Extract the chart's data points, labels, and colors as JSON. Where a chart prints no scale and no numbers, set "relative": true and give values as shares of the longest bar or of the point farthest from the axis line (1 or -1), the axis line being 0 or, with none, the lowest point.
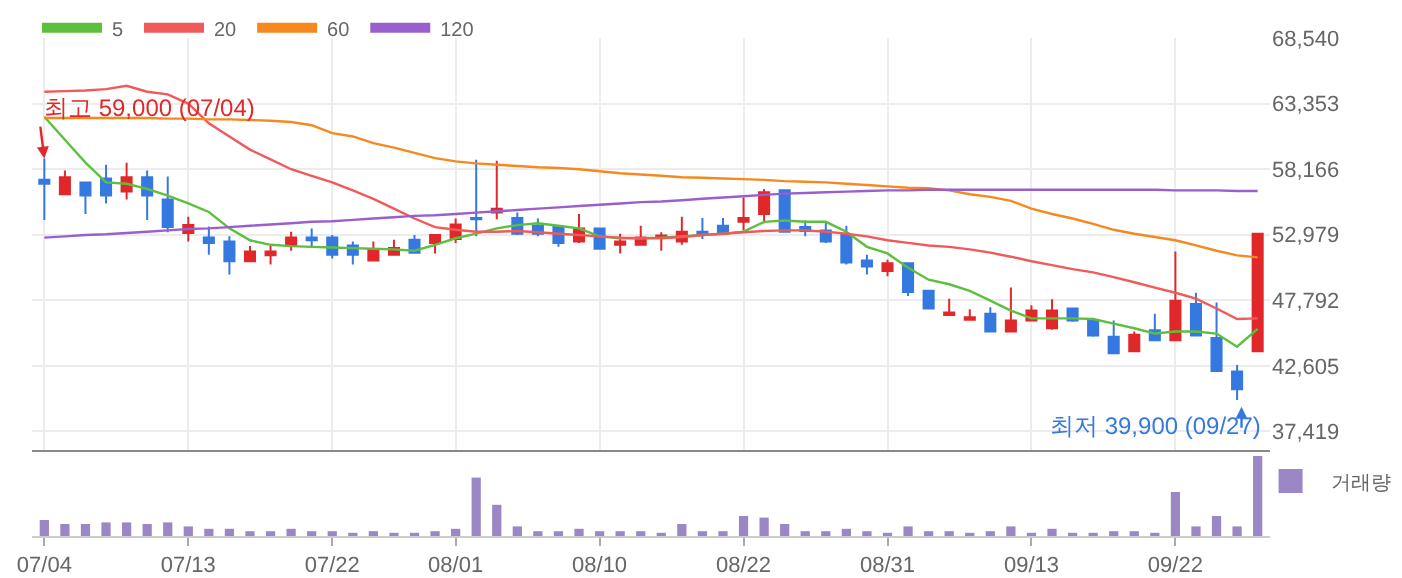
{
  "chart_data": [
    {
      "type": "candlestick",
      "categories": [
        "07/04",
        null,
        null,
        null,
        null,
        null,
        null,
        "07/13",
        null,
        null,
        null,
        null,
        null,
        null,
        "07/22",
        null,
        null,
        null,
        null,
        null,
        "08/01",
        null,
        null,
        null,
        null,
        null,
        null,
        "08/10",
        null,
        null,
        null,
        null,
        null,
        null,
        "08/22",
        null,
        null,
        null,
        null,
        null,
        null,
        "08/31",
        null,
        null,
        null,
        null,
        null,
        null,
        "09/13",
        null,
        null,
        null,
        null,
        null,
        null,
        "09/22",
        null,
        null,
        null,
        null
      ],
      "ohlc": [
        [
          57320,
          59000,
          54150,
          57010
        ],
        [
          56180,
          58050,
          56180,
          57530
        ],
        [
          57120,
          57120,
          54620,
          56080
        ],
        [
          57430,
          58520,
          55450,
          56080
        ],
        [
          56390,
          58680,
          55760,
          57530
        ],
        [
          57530,
          58050,
          54150,
          56080
        ],
        [
          55760,
          57580,
          53170,
          53580
        ],
        [
          53110,
          54410,
          52440,
          53740
        ],
        [
          52750,
          53630,
          51400,
          52330
        ],
        [
          52440,
          52850,
          49840,
          50880
        ],
        [
          50880,
          52080,
          50880,
          51660
        ],
        [
          51350,
          52080,
          50620,
          51660
        ],
        [
          52130,
          53220,
          51710,
          52750
        ],
        [
          52750,
          53480,
          51920,
          52540
        ],
        [
          52750,
          52960,
          51090,
          51400
        ],
        [
          52130,
          52440,
          50620,
          51400
        ],
        [
          50930,
          52440,
          50930,
          51820
        ],
        [
          51400,
          52590,
          51400,
          51920
        ],
        [
          52590,
          52960,
          51500,
          51560
        ],
        [
          52330,
          52960,
          51500,
          52960
        ],
        [
          52650,
          54260,
          52330,
          53790
        ],
        [
          54310,
          58900,
          52850,
          54210
        ],
        [
          54730,
          58830,
          54210,
          55040
        ],
        [
          54310,
          54730,
          52960,
          53060
        ],
        [
          53690,
          54260,
          52850,
          53060
        ],
        [
          53580,
          53630,
          52020,
          52330
        ],
        [
          52440,
          54620,
          52330,
          53480
        ],
        [
          53480,
          53480,
          51870,
          51870
        ],
        [
          52180,
          53060,
          51500,
          52440
        ],
        [
          52180,
          53690,
          52180,
          52750
        ],
        [
          52750,
          53170,
          51710,
          52910
        ],
        [
          52440,
          54410,
          52180,
          53220
        ],
        [
          53220,
          54310,
          52650,
          53060
        ],
        [
          53690,
          54310,
          52960,
          53060
        ],
        [
          54000,
          55920,
          53320,
          54310
        ],
        [
          54620,
          56600,
          53890,
          56340
        ],
        [
          56490,
          56490,
          53220,
          53220
        ],
        [
          53580,
          54100,
          52850,
          53270
        ],
        [
          53320,
          54050,
          52330,
          52440
        ],
        [
          52960,
          53690,
          50620,
          50780
        ],
        [
          50930,
          51400,
          49840,
          50460
        ],
        [
          50100,
          51000,
          49700,
          50720
        ],
        [
          50720,
          50780,
          48130,
          48440
        ],
        [
          48540,
          48540,
          47140,
          47140
        ],
        [
          46620,
          47920,
          46620,
          46830
        ],
        [
          46250,
          47090,
          46250,
          46460
        ],
        [
          46720,
          47240,
          45320,
          45320
        ],
        [
          45320,
          48800,
          45320,
          46200
        ],
        [
          46200,
          47400,
          46200,
          46980
        ],
        [
          45580,
          47870,
          45470,
          46980
        ],
        [
          47140,
          47140,
          46100,
          46200
        ],
        [
          46200,
          46310,
          44900,
          45010
        ],
        [
          44900,
          46200,
          43600,
          43600
        ],
        [
          43760,
          45320,
          43760,
          45060
        ],
        [
          45420,
          46720,
          44640,
          44640
        ],
        [
          44640,
          51660,
          44640,
          47760
        ],
        [
          47500,
          48390,
          45010,
          45010
        ],
        [
          44800,
          47610,
          42200,
          42200
        ],
        [
          42150,
          42670,
          39900,
          40750
        ],
        [
          43760,
          53060,
          43760,
          53060
        ]
      ],
      "series": [
        {
          "name": "5",
          "type": "line",
          "color": "#5cc03e",
          "values": [
            62310,
            60490,
            58680,
            57120,
            57010,
            56600,
            56080,
            55450,
            54780,
            53480,
            52540,
            52180,
            52080,
            52020,
            51970,
            51920,
            51870,
            51820,
            51710,
            52180,
            52700,
            53060,
            53480,
            53740,
            53890,
            53690,
            53480,
            52850,
            52700,
            52700,
            52750,
            52850,
            52960,
            53060,
            53220,
            54000,
            54100,
            54000,
            54000,
            53220,
            52020,
            51500,
            50360,
            49420,
            49060,
            48540,
            47760,
            46980,
            46360,
            46360,
            46360,
            46310,
            45940,
            45580,
            45160,
            45320,
            45320,
            45160,
            44120,
            45530
          ]
        },
        {
          "name": "20",
          "type": "line",
          "color": "#f05a5a",
          "values": [
            64290,
            64340,
            64390,
            64500,
            64760,
            64290,
            64080,
            63350,
            61790,
            60750,
            59710,
            58940,
            58160,
            57640,
            57120,
            56490,
            55820,
            55040,
            54260,
            53580,
            53370,
            53220,
            53220,
            53270,
            53170,
            53060,
            52960,
            52850,
            52750,
            52700,
            52700,
            52800,
            52960,
            53060,
            53170,
            53270,
            53320,
            53320,
            53220,
            53060,
            52850,
            52540,
            52330,
            52130,
            52020,
            51820,
            51560,
            51240,
            50880,
            50570,
            50260,
            50000,
            49630,
            49220,
            48800,
            48390,
            47920,
            47140,
            46310,
            46360
          ]
        },
        {
          "name": "60",
          "type": "line",
          "color": "#f5891f",
          "values": [
            62210,
            62210,
            62210,
            62210,
            62210,
            62210,
            62160,
            62160,
            62100,
            62100,
            62050,
            62000,
            61900,
            61640,
            61010,
            60750,
            60230,
            59870,
            59450,
            59040,
            58780,
            58620,
            58520,
            58410,
            58310,
            58260,
            58160,
            58000,
            57840,
            57740,
            57640,
            57530,
            57480,
            57430,
            57380,
            57320,
            57220,
            57170,
            57120,
            57010,
            56910,
            56800,
            56700,
            56650,
            56490,
            56180,
            55970,
            55660,
            55040,
            54620,
            54260,
            53840,
            53370,
            53060,
            52800,
            52540,
            52130,
            51710,
            51350,
            51190
          ]
        },
        {
          "name": "120",
          "type": "line",
          "color": "#9a5fce",
          "values": [
            52750,
            52850,
            52960,
            53010,
            53110,
            53220,
            53320,
            53430,
            53480,
            53580,
            53690,
            53790,
            53890,
            54000,
            54050,
            54150,
            54260,
            54360,
            54470,
            54520,
            54620,
            54730,
            54830,
            54930,
            55040,
            55140,
            55250,
            55350,
            55450,
            55560,
            55610,
            55710,
            55820,
            55920,
            56020,
            56130,
            56230,
            56280,
            56340,
            56390,
            56440,
            56490,
            56490,
            56540,
            56540,
            56540,
            56540,
            56540,
            56540,
            56540,
            56540,
            56540,
            56540,
            56540,
            56540,
            56490,
            56490,
            56490,
            56440,
            56440
          ]
        }
      ],
      "ylim": [
        35950,
        68540
      ],
      "yticks": [
        {
          "value": 37419,
          "label": "37,419"
        },
        {
          "value": 42605,
          "label": "42,605"
        },
        {
          "value": 47792,
          "label": "47,792"
        },
        {
          "value": 52979,
          "label": "52,979"
        },
        {
          "value": 58166,
          "label": "58,166"
        },
        {
          "value": 63353,
          "label": "63,353"
        },
        {
          "value": 68540,
          "label": "68,540"
        }
      ],
      "grid": true,
      "legend": "top left",
      "tick_labels": "y",
      "annotations": [
        {
          "text": "최고 59,000 (07/04)",
          "x": "07/04",
          "y": 59000
        },
        "최저 39,900 (09/27)"
      ]
    },
    {
      "type": "bar",
      "categories": [
        "07/04",
        null,
        null,
        null,
        null,
        null,
        null,
        "07/13",
        null,
        null,
        null,
        null,
        null,
        null,
        "07/22",
        null,
        null,
        null,
        null,
        null,
        "08/01",
        null,
        null,
        null,
        null,
        null,
        null,
        "08/10",
        null,
        null,
        null,
        null,
        null,
        null,
        "08/22",
        null,
        null,
        null,
        null,
        null,
        null,
        "08/31",
        null,
        null,
        null,
        null,
        null,
        null,
        "09/13",
        null,
        null,
        null,
        null,
        null,
        null,
        "09/22",
        null,
        null,
        null,
        null
      ],
      "series": [
        {
          "name": "거래량",
          "color": "#9b87c6",
          "values": [
            0.2,
            0.15,
            0.15,
            0.17,
            0.17,
            0.15,
            0.17,
            0.12,
            0.09,
            0.09,
            0.06,
            0.06,
            0.09,
            0.06,
            0.06,
            0.04,
            0.06,
            0.04,
            0.04,
            0.06,
            0.09,
            0.73,
            0.39,
            0.12,
            0.06,
            0.06,
            0.09,
            0.06,
            0.06,
            0.06,
            0.04,
            0.15,
            0.06,
            0.06,
            0.25,
            0.23,
            0.15,
            0.06,
            0.06,
            0.09,
            0.06,
            0.04,
            0.12,
            0.06,
            0.06,
            0.04,
            0.06,
            0.12,
            0.04,
            0.09,
            0.04,
            0.04,
            0.06,
            0.06,
            0.04,
            0.55,
            0.12,
            0.25,
            0.12,
            1
          ]
        }
      ],
      "relative": true,
      "legend": "top right",
      "tick_labels": "x"
    }
  ]
}
